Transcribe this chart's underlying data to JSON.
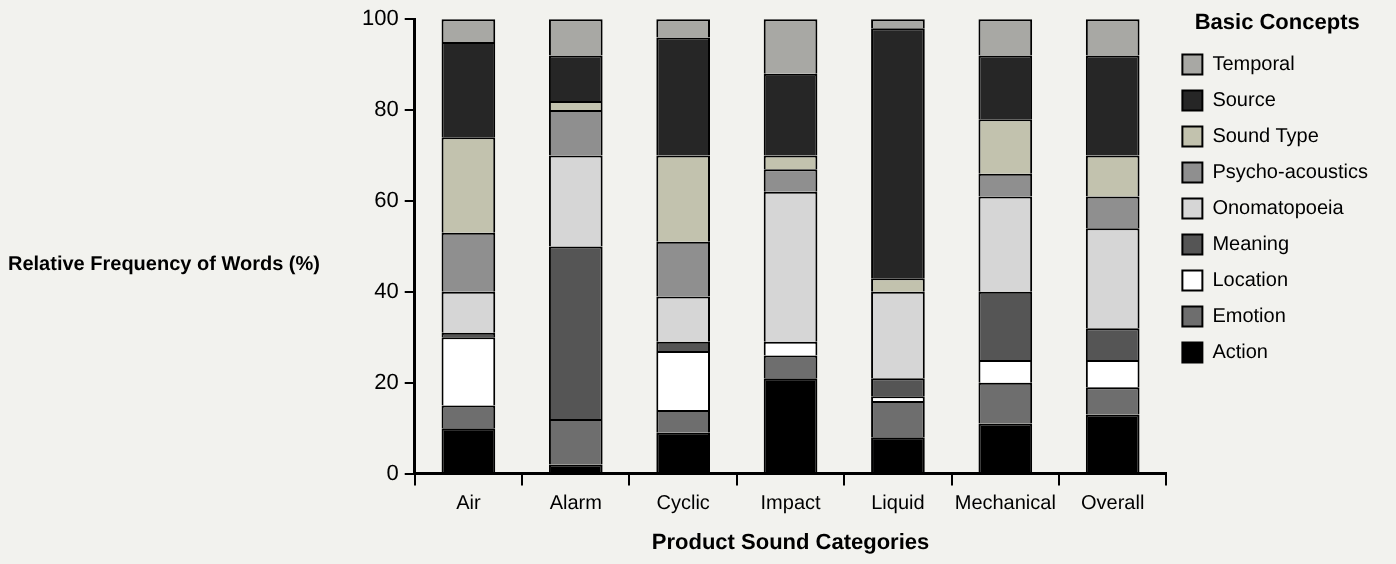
{
  "chart_data": {
    "type": "bar",
    "stacked": true,
    "xlabel": "Product Sound Categories",
    "ylabel": "Relative Frequency of Words (%)",
    "legend_title": "Basic Concepts",
    "legend": "right",
    "grid": false,
    "categories": [
      "Air",
      "Alarm",
      "Cyclic",
      "Impact",
      "Liquid",
      "Mechanical",
      "Overall"
    ],
    "ylim": [
      0,
      100
    ],
    "yticks": [
      0,
      20,
      40,
      60,
      80,
      100
    ],
    "series": [
      {
        "name": "Action",
        "color": "#000000",
        "values": [
          10,
          2,
          9,
          21,
          8,
          11,
          13
        ]
      },
      {
        "name": "Emotion",
        "color": "#6e6e6e",
        "values": [
          5,
          10,
          5,
          5,
          8,
          9,
          6
        ]
      },
      {
        "name": "Location",
        "color": "#ffffff",
        "values": [
          15,
          0,
          13,
          3,
          1,
          5,
          6
        ]
      },
      {
        "name": "Meaning",
        "color": "#555555",
        "values": [
          1,
          38,
          2,
          0,
          4,
          15,
          7
        ]
      },
      {
        "name": "Onomatopoeia",
        "color": "#d6d6d6",
        "values": [
          9,
          20,
          10,
          33,
          19,
          21,
          22
        ]
      },
      {
        "name": "Psycho-acoustics",
        "color": "#8f8f8f",
        "values": [
          13,
          10,
          12,
          5,
          0,
          5,
          7
        ]
      },
      {
        "name": "Sound Type",
        "color": "#c2c2ae",
        "values": [
          21,
          2,
          19,
          3,
          3,
          12,
          9
        ]
      },
      {
        "name": "Source",
        "color": "#262626",
        "values": [
          21,
          10,
          26,
          18,
          55,
          14,
          22
        ]
      },
      {
        "name": "Temporal",
        "color": "#a8a8a4",
        "values": [
          5,
          8,
          4,
          12,
          2,
          8,
          8
        ]
      }
    ]
  }
}
